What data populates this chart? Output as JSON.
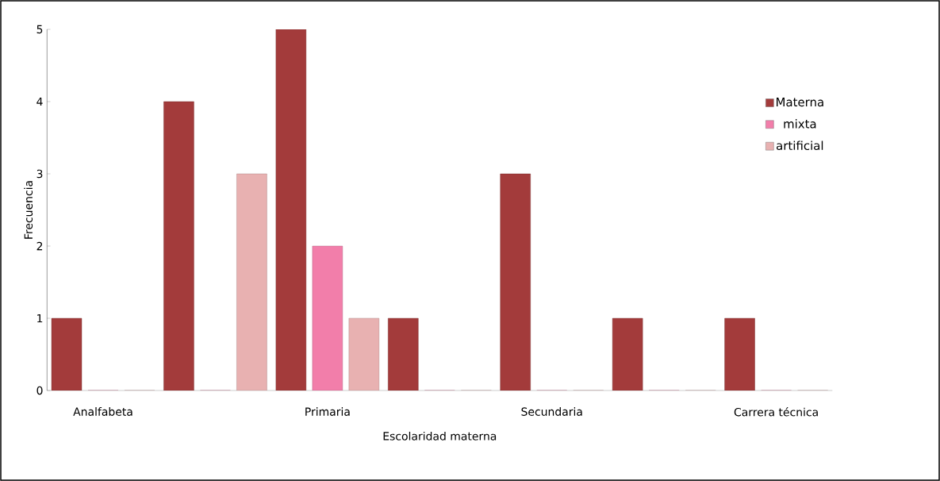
{
  "chart_data": {
    "type": "bar",
    "xlabel": "Escolaridad materna",
    "ylabel": "Frecuencia",
    "categories": [
      "Analfabeta",
      null,
      "Primaria",
      null,
      "Secundaria",
      null,
      "Carrera técnica"
    ],
    "series": [
      {
        "name": "Materna",
        "color": "#a33b3b",
        "values": [
          1,
          4,
          5,
          1,
          3,
          1,
          1
        ]
      },
      {
        "name": "mixta",
        "color": "#f27eaa",
        "values": [
          0,
          0,
          2,
          0,
          0,
          0,
          0
        ]
      },
      {
        "name": "artificial",
        "color": "#e8b1b1",
        "values": [
          0,
          3,
          1,
          0,
          0,
          0,
          0
        ]
      }
    ],
    "ylim": [
      0,
      5
    ],
    "yticks": [
      0,
      1,
      2,
      3,
      4,
      5
    ],
    "grid": false,
    "legend": "right"
  }
}
